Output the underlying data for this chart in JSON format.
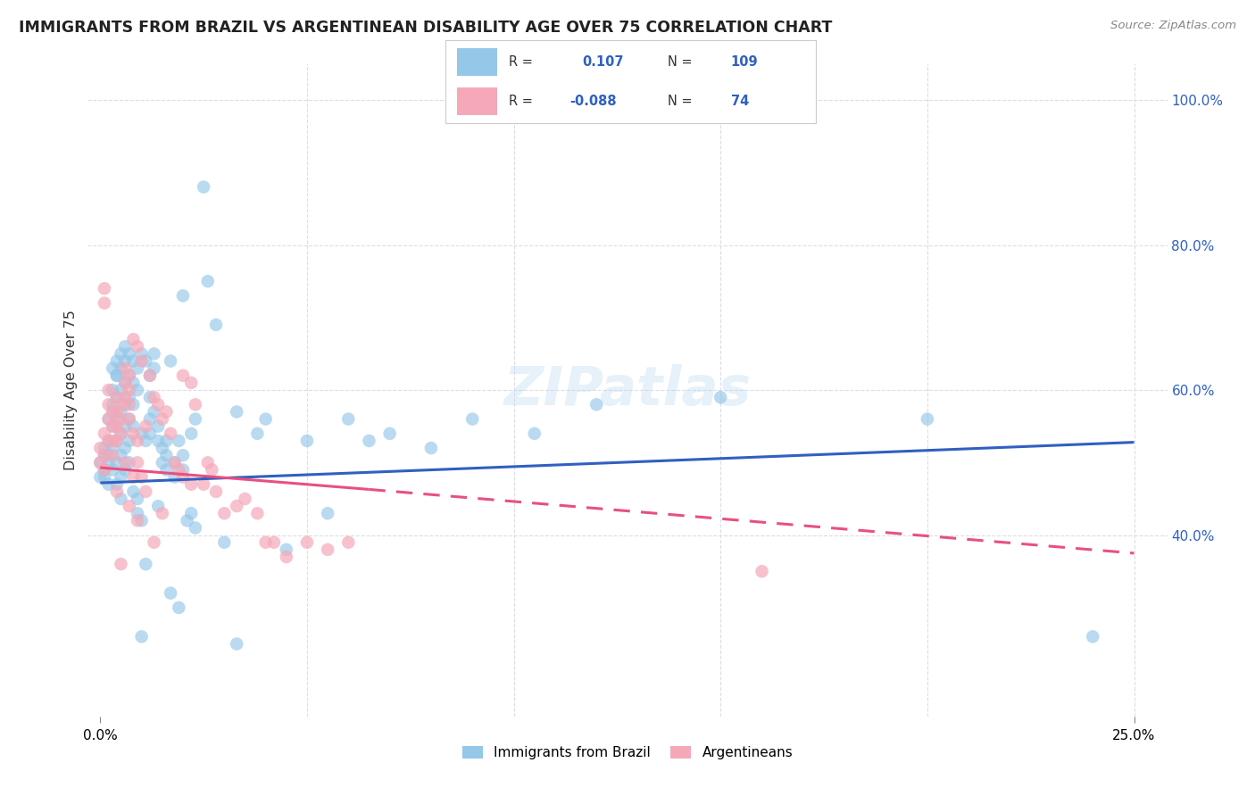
{
  "title": "IMMIGRANTS FROM BRAZIL VS ARGENTINEAN DISABILITY AGE OVER 75 CORRELATION CHART",
  "source": "Source: ZipAtlas.com",
  "ylabel": "Disability Age Over 75",
  "legend_entries": [
    "Immigrants from Brazil",
    "Argentineans"
  ],
  "r_brazil": 0.107,
  "n_brazil": 109,
  "r_argentina": -0.088,
  "n_argentina": 74,
  "blue_color": "#94C7E8",
  "pink_color": "#F5A8B8",
  "blue_line_color": "#3060C0",
  "pink_line_color": "#E85080",
  "blue_text_color": "#3060C0",
  "background_color": "#FFFFFF",
  "grid_color": "#DCDCE8",
  "title_color": "#222222",
  "brazil_trendline": [
    0.0,
    0.25,
    0.472,
    0.528
  ],
  "argentina_trendline_solid": [
    0.0,
    0.065,
    0.493,
    0.463
  ],
  "argentina_trendline_dashed": [
    0.065,
    0.25,
    0.463,
    0.375
  ],
  "brazil_scatter": [
    [
      0.0,
      0.48
    ],
    [
      0.0,
      0.5
    ],
    [
      0.001,
      0.51
    ],
    [
      0.001,
      0.49
    ],
    [
      0.001,
      0.52
    ],
    [
      0.001,
      0.48
    ],
    [
      0.002,
      0.53
    ],
    [
      0.002,
      0.5
    ],
    [
      0.002,
      0.51
    ],
    [
      0.002,
      0.56
    ],
    [
      0.002,
      0.47
    ],
    [
      0.003,
      0.58
    ],
    [
      0.003,
      0.55
    ],
    [
      0.003,
      0.52
    ],
    [
      0.003,
      0.49
    ],
    [
      0.003,
      0.63
    ],
    [
      0.003,
      0.6
    ],
    [
      0.003,
      0.57
    ],
    [
      0.004,
      0.64
    ],
    [
      0.004,
      0.62
    ],
    [
      0.004,
      0.59
    ],
    [
      0.004,
      0.56
    ],
    [
      0.004,
      0.53
    ],
    [
      0.004,
      0.5
    ],
    [
      0.004,
      0.47
    ],
    [
      0.004,
      0.62
    ],
    [
      0.005,
      0.65
    ],
    [
      0.005,
      0.63
    ],
    [
      0.005,
      0.6
    ],
    [
      0.005,
      0.57
    ],
    [
      0.005,
      0.54
    ],
    [
      0.005,
      0.51
    ],
    [
      0.005,
      0.48
    ],
    [
      0.005,
      0.45
    ],
    [
      0.006,
      0.66
    ],
    [
      0.006,
      0.64
    ],
    [
      0.006,
      0.61
    ],
    [
      0.006,
      0.58
    ],
    [
      0.006,
      0.55
    ],
    [
      0.006,
      0.52
    ],
    [
      0.006,
      0.49
    ],
    [
      0.007,
      0.65
    ],
    [
      0.007,
      0.62
    ],
    [
      0.007,
      0.59
    ],
    [
      0.007,
      0.56
    ],
    [
      0.007,
      0.53
    ],
    [
      0.007,
      0.5
    ],
    [
      0.008,
      0.64
    ],
    [
      0.008,
      0.61
    ],
    [
      0.008,
      0.58
    ],
    [
      0.008,
      0.55
    ],
    [
      0.008,
      0.46
    ],
    [
      0.009,
      0.63
    ],
    [
      0.009,
      0.6
    ],
    [
      0.009,
      0.45
    ],
    [
      0.009,
      0.43
    ],
    [
      0.01,
      0.65
    ],
    [
      0.01,
      0.54
    ],
    [
      0.01,
      0.42
    ],
    [
      0.01,
      0.26
    ],
    [
      0.011,
      0.64
    ],
    [
      0.011,
      0.53
    ],
    [
      0.011,
      0.36
    ],
    [
      0.012,
      0.62
    ],
    [
      0.012,
      0.59
    ],
    [
      0.012,
      0.56
    ],
    [
      0.012,
      0.54
    ],
    [
      0.013,
      0.65
    ],
    [
      0.013,
      0.63
    ],
    [
      0.013,
      0.57
    ],
    [
      0.014,
      0.55
    ],
    [
      0.014,
      0.53
    ],
    [
      0.014,
      0.44
    ],
    [
      0.015,
      0.52
    ],
    [
      0.015,
      0.5
    ],
    [
      0.016,
      0.53
    ],
    [
      0.016,
      0.51
    ],
    [
      0.016,
      0.49
    ],
    [
      0.017,
      0.64
    ],
    [
      0.017,
      0.32
    ],
    [
      0.018,
      0.5
    ],
    [
      0.018,
      0.48
    ],
    [
      0.019,
      0.53
    ],
    [
      0.019,
      0.3
    ],
    [
      0.02,
      0.73
    ],
    [
      0.02,
      0.51
    ],
    [
      0.02,
      0.49
    ],
    [
      0.021,
      0.42
    ],
    [
      0.022,
      0.54
    ],
    [
      0.022,
      0.43
    ],
    [
      0.023,
      0.56
    ],
    [
      0.023,
      0.41
    ],
    [
      0.025,
      0.88
    ],
    [
      0.026,
      0.75
    ],
    [
      0.028,
      0.69
    ],
    [
      0.03,
      0.39
    ],
    [
      0.033,
      0.57
    ],
    [
      0.033,
      0.25
    ],
    [
      0.038,
      0.54
    ],
    [
      0.04,
      0.56
    ],
    [
      0.045,
      0.38
    ],
    [
      0.05,
      0.53
    ],
    [
      0.055,
      0.43
    ],
    [
      0.06,
      0.56
    ],
    [
      0.065,
      0.53
    ],
    [
      0.07,
      0.54
    ],
    [
      0.08,
      0.52
    ],
    [
      0.09,
      0.56
    ],
    [
      0.105,
      0.54
    ],
    [
      0.12,
      0.58
    ],
    [
      0.15,
      0.59
    ],
    [
      0.2,
      0.56
    ],
    [
      0.24,
      0.26
    ]
  ],
  "argentina_scatter": [
    [
      0.0,
      0.52
    ],
    [
      0.0,
      0.5
    ],
    [
      0.001,
      0.54
    ],
    [
      0.001,
      0.51
    ],
    [
      0.001,
      0.49
    ],
    [
      0.001,
      0.74
    ],
    [
      0.001,
      0.72
    ],
    [
      0.002,
      0.56
    ],
    [
      0.002,
      0.53
    ],
    [
      0.002,
      0.6
    ],
    [
      0.002,
      0.58
    ],
    [
      0.003,
      0.57
    ],
    [
      0.003,
      0.55
    ],
    [
      0.003,
      0.53
    ],
    [
      0.003,
      0.51
    ],
    [
      0.004,
      0.59
    ],
    [
      0.004,
      0.57
    ],
    [
      0.004,
      0.55
    ],
    [
      0.004,
      0.53
    ],
    [
      0.004,
      0.46
    ],
    [
      0.005,
      0.58
    ],
    [
      0.005,
      0.56
    ],
    [
      0.005,
      0.54
    ],
    [
      0.005,
      0.36
    ],
    [
      0.006,
      0.63
    ],
    [
      0.006,
      0.61
    ],
    [
      0.006,
      0.59
    ],
    [
      0.006,
      0.5
    ],
    [
      0.007,
      0.62
    ],
    [
      0.007,
      0.6
    ],
    [
      0.007,
      0.58
    ],
    [
      0.007,
      0.56
    ],
    [
      0.007,
      0.44
    ],
    [
      0.008,
      0.67
    ],
    [
      0.008,
      0.54
    ],
    [
      0.008,
      0.48
    ],
    [
      0.009,
      0.66
    ],
    [
      0.009,
      0.53
    ],
    [
      0.009,
      0.5
    ],
    [
      0.009,
      0.42
    ],
    [
      0.01,
      0.64
    ],
    [
      0.01,
      0.48
    ],
    [
      0.011,
      0.55
    ],
    [
      0.011,
      0.46
    ],
    [
      0.012,
      0.62
    ],
    [
      0.013,
      0.59
    ],
    [
      0.013,
      0.39
    ],
    [
      0.014,
      0.58
    ],
    [
      0.015,
      0.56
    ],
    [
      0.015,
      0.43
    ],
    [
      0.016,
      0.57
    ],
    [
      0.017,
      0.54
    ],
    [
      0.018,
      0.5
    ],
    [
      0.019,
      0.49
    ],
    [
      0.02,
      0.62
    ],
    [
      0.02,
      0.48
    ],
    [
      0.022,
      0.61
    ],
    [
      0.022,
      0.47
    ],
    [
      0.023,
      0.58
    ],
    [
      0.025,
      0.47
    ],
    [
      0.026,
      0.5
    ],
    [
      0.027,
      0.49
    ],
    [
      0.028,
      0.46
    ],
    [
      0.03,
      0.43
    ],
    [
      0.033,
      0.44
    ],
    [
      0.035,
      0.45
    ],
    [
      0.038,
      0.43
    ],
    [
      0.04,
      0.39
    ],
    [
      0.042,
      0.39
    ],
    [
      0.045,
      0.37
    ],
    [
      0.05,
      0.39
    ],
    [
      0.055,
      0.38
    ],
    [
      0.06,
      0.39
    ],
    [
      0.16,
      0.35
    ]
  ],
  "xlim": [
    -0.003,
    0.258
  ],
  "ylim": [
    0.15,
    1.05
  ],
  "yticks_right": [
    0.4,
    0.6,
    0.8,
    1.0
  ],
  "ytick_labels_right": [
    "40.0%",
    "60.0%",
    "80.0%",
    "100.0%"
  ],
  "xticks": [
    0.0,
    0.25
  ],
  "xtick_labels": [
    "0.0%",
    "25.0%"
  ]
}
